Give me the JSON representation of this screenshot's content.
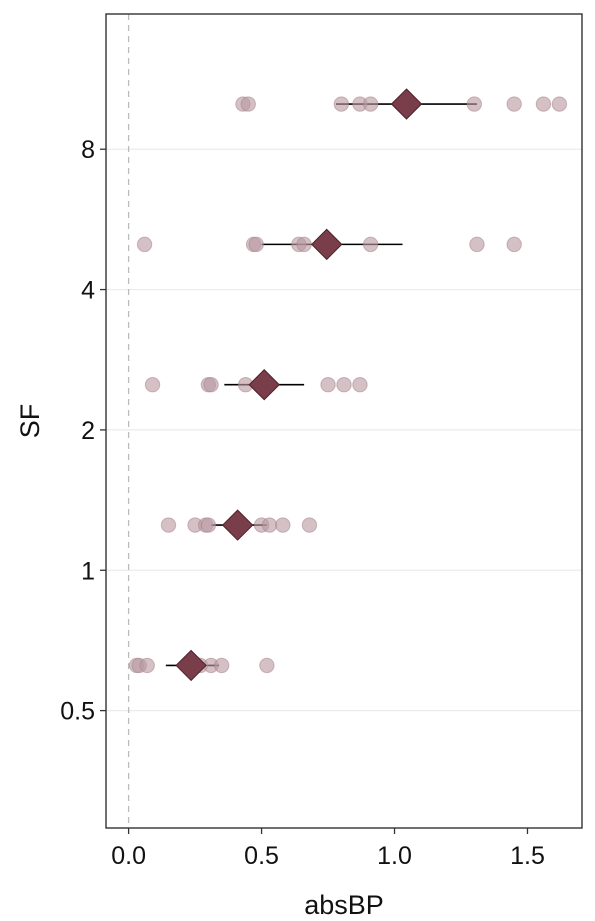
{
  "chart_data": {
    "type": "scatter",
    "xlabel": "absBP",
    "ylabel": "SF",
    "x_ticks": [
      "0.0",
      "0.5",
      "1.0",
      "1.5"
    ],
    "x_tick_values": [
      0.0,
      0.5,
      1.0,
      1.5
    ],
    "y_ticks": [
      "0.5",
      "1",
      "2",
      "4",
      "8"
    ],
    "y_tick_values": [
      0.5,
      1,
      2,
      4,
      8
    ],
    "y_scale": "log2",
    "xlim": [
      -0.085,
      1.705
    ],
    "ylim": [
      0.28,
      15.6
    ],
    "grid": "horizontal",
    "reference_line_x": 0,
    "colors": {
      "point": "#ba9aa2",
      "point_stroke": "#a07f88",
      "mean": "#7a3d4a",
      "errorbar": "#000000",
      "reference": "#bbbbbb",
      "grid": "#ebebeb"
    },
    "groups": [
      {
        "sf": 0.625,
        "points": [
          0.03,
          0.04,
          0.07,
          0.22,
          0.25,
          0.27,
          0.31,
          0.35,
          0.52
        ],
        "mean": 0.235,
        "ci": [
          0.14,
          0.34
        ]
      },
      {
        "sf": 1.25,
        "points": [
          0.15,
          0.25,
          0.29,
          0.3,
          0.41,
          0.5,
          0.53,
          0.58,
          0.68
        ],
        "mean": 0.41,
        "ci": [
          0.31,
          0.52
        ]
      },
      {
        "sf": 2.5,
        "points": [
          0.09,
          0.3,
          0.31,
          0.44,
          0.51,
          0.75,
          0.81,
          0.87
        ],
        "mean": 0.51,
        "ci": [
          0.36,
          0.66
        ]
      },
      {
        "sf": 5,
        "points": [
          0.06,
          0.47,
          0.48,
          0.64,
          0.66,
          0.74,
          0.91,
          1.31,
          1.45
        ],
        "mean": 0.745,
        "ci": [
          0.5,
          1.03
        ]
      },
      {
        "sf": 10,
        "points": [
          0.43,
          0.45,
          0.8,
          0.87,
          0.91,
          1.04,
          1.3,
          1.45,
          1.56,
          1.62
        ],
        "mean": 1.045,
        "ci": [
          0.78,
          1.31
        ]
      }
    ]
  }
}
